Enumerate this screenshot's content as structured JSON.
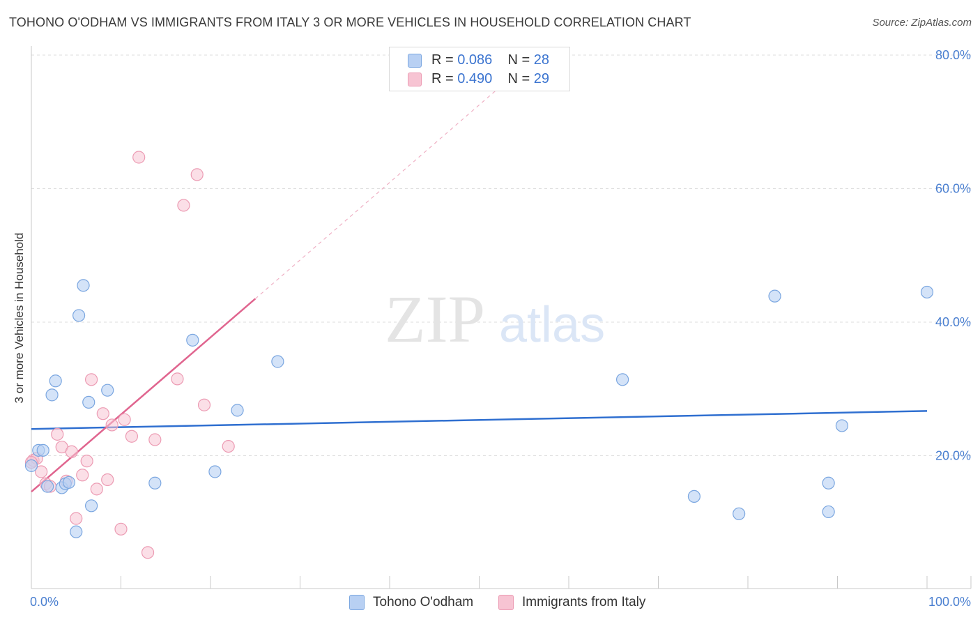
{
  "title": "TOHONO O'ODHAM VS IMMIGRANTS FROM ITALY 3 OR MORE VEHICLES IN HOUSEHOLD CORRELATION CHART",
  "source": "Source: ZipAtlas.com",
  "watermark": {
    "zip": "ZIP",
    "atlas": "atlas"
  },
  "colors": {
    "blue_fill": "#b8d0f3",
    "blue_stroke": "#7aa6e0",
    "blue_line": "#2f6fd0",
    "pink_fill": "#f7c4d3",
    "pink_stroke": "#ec9bb3",
    "pink_line": "#e0658f",
    "grid": "#dedede",
    "axis_label": "#4a7fd0"
  },
  "legend": {
    "rows": [
      {
        "r_label": "R = ",
        "r_value": "0.086",
        "n_label": "N = ",
        "n_value": "28",
        "color": "blue"
      },
      {
        "r_label": "R = ",
        "r_value": "0.490",
        "n_label": "N = ",
        "n_value": "29",
        "color": "pink"
      }
    ]
  },
  "bottom_legend": {
    "series_a": "Tohono O'odham",
    "series_b": "Immigrants from Italy"
  },
  "chart_data": {
    "type": "scatter",
    "title": "TOHONO O'ODHAM VS IMMIGRANTS FROM ITALY 3 OR MORE VEHICLES IN HOUSEHOLD CORRELATION CHART",
    "xlabel": "",
    "ylabel": "3 or more Vehicles in Household",
    "xlim": [
      0,
      100
    ],
    "ylim": [
      0,
      80
    ],
    "x_tick_labels": [
      "0.0%",
      "100.0%"
    ],
    "y_ticks": [
      20,
      40,
      60,
      80
    ],
    "y_tick_labels": [
      "20.0%",
      "40.0%",
      "60.0%",
      "80.0%"
    ],
    "grid": true,
    "legend_position": "top-center",
    "series": [
      {
        "name": "Tohono O'odham",
        "color": "#b8d0f3",
        "r": 0.086,
        "n": 28,
        "points": [
          [
            0.0,
            18.5
          ],
          [
            0.8,
            20.8
          ],
          [
            1.3,
            20.8
          ],
          [
            1.8,
            15.4
          ],
          [
            2.3,
            29.1
          ],
          [
            2.7,
            31.2
          ],
          [
            3.4,
            15.2
          ],
          [
            3.8,
            15.8
          ],
          [
            4.2,
            16.0
          ],
          [
            5.0,
            8.6
          ],
          [
            5.3,
            41.0
          ],
          [
            5.8,
            45.5
          ],
          [
            6.4,
            28.0
          ],
          [
            6.7,
            12.5
          ],
          [
            8.5,
            29.8
          ],
          [
            13.8,
            15.9
          ],
          [
            18.0,
            37.3
          ],
          [
            20.5,
            17.6
          ],
          [
            23.0,
            26.8
          ],
          [
            27.5,
            34.1
          ],
          [
            66.0,
            31.4
          ],
          [
            74.0,
            13.9
          ],
          [
            79.0,
            11.3
          ],
          [
            83.0,
            43.9
          ],
          [
            89.0,
            15.9
          ],
          [
            89.0,
            11.6
          ],
          [
            90.5,
            24.5
          ],
          [
            100.0,
            44.5
          ]
        ],
        "trend": {
          "x": [
            0,
            100
          ],
          "y": [
            24.0,
            26.7
          ]
        }
      },
      {
        "name": "Immigrants from Italy",
        "color": "#f7c4d3",
        "r": 0.49,
        "n": 29,
        "points": [
          [
            0.2,
            19.3
          ],
          [
            0.6,
            19.6
          ],
          [
            1.1,
            17.6
          ],
          [
            1.6,
            15.8
          ],
          [
            2.1,
            15.4
          ],
          [
            2.9,
            23.2
          ],
          [
            3.4,
            21.3
          ],
          [
            3.9,
            16.2
          ],
          [
            4.5,
            20.6
          ],
          [
            5.0,
            10.6
          ],
          [
            5.7,
            17.1
          ],
          [
            6.2,
            19.2
          ],
          [
            6.7,
            31.4
          ],
          [
            7.3,
            15.0
          ],
          [
            8.0,
            26.3
          ],
          [
            8.5,
            16.4
          ],
          [
            9.0,
            24.6
          ],
          [
            10.0,
            9.0
          ],
          [
            10.4,
            25.4
          ],
          [
            11.2,
            22.9
          ],
          [
            12.0,
            64.7
          ],
          [
            13.0,
            5.5
          ],
          [
            13.8,
            22.4
          ],
          [
            16.3,
            31.5
          ],
          [
            17.0,
            57.5
          ],
          [
            18.5,
            62.1
          ],
          [
            19.3,
            27.6
          ],
          [
            22.0,
            21.4
          ],
          [
            0.0,
            19.0
          ]
        ],
        "trend": {
          "x": [
            0,
            25
          ],
          "y": [
            14.6,
            43.5
          ]
        },
        "trend_extension": {
          "x": [
            25,
            56
          ],
          "y": [
            43.5,
            79.5
          ]
        }
      }
    ]
  }
}
